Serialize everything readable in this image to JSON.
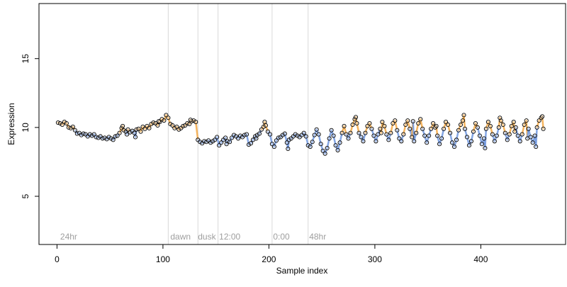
{
  "chart_data": {
    "type": "scatter",
    "title": "",
    "xlabel": "Sample index",
    "ylabel": "Expression",
    "xlim": [
      -17,
      480
    ],
    "ylim": [
      1.5,
      19.0
    ],
    "x_ticks": [
      0,
      100,
      200,
      300,
      400
    ],
    "y_ticks": [
      5,
      10,
      15
    ],
    "grid": false,
    "vlines": [
      105,
      133,
      152,
      203,
      237
    ],
    "annotations": [
      {
        "label": "24hr",
        "x": 3
      },
      {
        "label": "dawn",
        "x": 107
      },
      {
        "label": "dusk",
        "x": 133
      },
      {
        "label": "12:00",
        "x": 153
      },
      {
        "label": "0:00",
        "x": 204
      },
      {
        "label": "48hr",
        "x": 238
      }
    ],
    "colors": {
      "axis": "#000000",
      "point_stroke": "#000000",
      "point_fill": "#ffffff",
      "fit_orange": "#f4a742",
      "fit_blue": "#6f97e0",
      "vline": "#d9d9d9",
      "annotation": "#9e9e9e"
    },
    "series": [
      {
        "values": [
          [
            1,
            10.35
          ],
          [
            3,
            10.3
          ],
          [
            5,
            10.2
          ],
          [
            7,
            10.4
          ],
          [
            9,
            10.3
          ],
          [
            11,
            10.0
          ],
          [
            13,
            9.95
          ],
          [
            15,
            10.05
          ],
          [
            17,
            9.8
          ],
          [
            19,
            9.55
          ],
          [
            21,
            9.6
          ],
          [
            23,
            9.45
          ],
          [
            25,
            9.55
          ],
          [
            27,
            9.5
          ],
          [
            29,
            9.35
          ],
          [
            31,
            9.5
          ],
          [
            33,
            9.4
          ],
          [
            35,
            9.5
          ],
          [
            37,
            9.3
          ],
          [
            39,
            9.25
          ],
          [
            41,
            9.35
          ],
          [
            43,
            9.2
          ],
          [
            45,
            9.25
          ],
          [
            47,
            9.15
          ],
          [
            49,
            9.3
          ],
          [
            51,
            9.2
          ],
          [
            53,
            9.1
          ],
          [
            55,
            9.35
          ],
          [
            57,
            9.4
          ],
          [
            59,
            9.6
          ],
          [
            61,
            9.95
          ],
          [
            63,
            9.8
          ],
          [
            65,
            9.7
          ],
          [
            67,
            9.85
          ],
          [
            69,
            9.65
          ],
          [
            71,
            9.75
          ],
          [
            73,
            9.6
          ],
          [
            75,
            9.85
          ],
          [
            77,
            9.9
          ],
          [
            79,
            9.7
          ],
          [
            81,
            10.05
          ],
          [
            83,
            9.9
          ],
          [
            85,
            10.1
          ],
          [
            87,
            9.95
          ],
          [
            89,
            10.25
          ],
          [
            91,
            10.35
          ],
          [
            93,
            10.3
          ],
          [
            95,
            10.15
          ],
          [
            97,
            10.4
          ],
          [
            99,
            10.6
          ],
          [
            101,
            10.5
          ],
          [
            103,
            10.9
          ],
          [
            105,
            10.7
          ],
          [
            107,
            10.25
          ],
          [
            109,
            10.15
          ],
          [
            111,
            9.95
          ],
          [
            113,
            10.05
          ],
          [
            115,
            9.85
          ],
          [
            117,
            9.95
          ],
          [
            119,
            10.1
          ],
          [
            121,
            10.15
          ],
          [
            123,
            10.3
          ],
          [
            125,
            10.25
          ],
          [
            127,
            10.45
          ],
          [
            129,
            10.5
          ],
          [
            131,
            10.4
          ],
          [
            133,
            9.1
          ],
          [
            135,
            8.95
          ],
          [
            137,
            8.85
          ],
          [
            139,
            9.0
          ],
          [
            141,
            8.95
          ],
          [
            143,
            9.05
          ],
          [
            145,
            8.9
          ],
          [
            147,
            9.0
          ],
          [
            149,
            9.1
          ],
          [
            151,
            9.3
          ],
          [
            153,
            8.7
          ],
          [
            155,
            8.9
          ],
          [
            157,
            9.1
          ],
          [
            159,
            9.25
          ],
          [
            161,
            9.0
          ],
          [
            163,
            8.95
          ],
          [
            165,
            9.25
          ],
          [
            167,
            9.45
          ],
          [
            169,
            9.35
          ],
          [
            171,
            9.2
          ],
          [
            173,
            9.4
          ],
          [
            175,
            9.3
          ],
          [
            177,
            9.45
          ],
          [
            179,
            9.5
          ],
          [
            181,
            8.75
          ],
          [
            183,
            8.85
          ],
          [
            185,
            9.1
          ],
          [
            187,
            9.35
          ],
          [
            189,
            9.45
          ],
          [
            191,
            9.55
          ],
          [
            193,
            9.85
          ],
          [
            195,
            10.05
          ],
          [
            197,
            10.15
          ],
          [
            199,
            9.7
          ],
          [
            201,
            9.5
          ],
          [
            203,
            8.8
          ],
          [
            205,
            8.6
          ],
          [
            207,
            9.05
          ],
          [
            209,
            9.25
          ],
          [
            211,
            9.3
          ],
          [
            213,
            9.45
          ],
          [
            215,
            9.55
          ],
          [
            217,
            8.9
          ],
          [
            219,
            9.1
          ],
          [
            221,
            9.2
          ],
          [
            223,
            9.35
          ],
          [
            225,
            9.5
          ],
          [
            227,
            9.4
          ],
          [
            229,
            9.3
          ],
          [
            231,
            9.45
          ],
          [
            233,
            9.6
          ],
          [
            235,
            9.35
          ],
          [
            237,
            8.7
          ],
          [
            239,
            8.6
          ],
          [
            241,
            8.95
          ],
          [
            243,
            9.45
          ],
          [
            245,
            9.85
          ],
          [
            247,
            9.5
          ],
          [
            249,
            8.8
          ],
          [
            251,
            8.3
          ],
          [
            253,
            8.1
          ],
          [
            255,
            8.5
          ],
          [
            257,
            9.2
          ],
          [
            259,
            9.8
          ],
          [
            261,
            9.4
          ],
          [
            263,
            8.7
          ],
          [
            265,
            8.35
          ],
          [
            267,
            8.9
          ],
          [
            269,
            9.6
          ],
          [
            271,
            10.1
          ],
          [
            273,
            9.5
          ],
          [
            275,
            9.2
          ],
          [
            277,
            9.6
          ],
          [
            279,
            10.2
          ],
          [
            281,
            10.6
          ],
          [
            283,
            10.3
          ],
          [
            285,
            9.6
          ],
          [
            287,
            9.3
          ],
          [
            289,
            9.0
          ],
          [
            291,
            9.6
          ],
          [
            293,
            10.1
          ],
          [
            295,
            10.3
          ],
          [
            297,
            9.9
          ],
          [
            299,
            9.4
          ],
          [
            301,
            9.0
          ],
          [
            303,
            9.5
          ],
          [
            305,
            9.9
          ],
          [
            307,
            10.4
          ],
          [
            309,
            10.1
          ],
          [
            311,
            9.5
          ],
          [
            313,
            9.1
          ],
          [
            315,
            9.6
          ],
          [
            317,
            10.3
          ],
          [
            319,
            10.5
          ],
          [
            321,
            9.8
          ],
          [
            323,
            9.2
          ],
          [
            325,
            9.0
          ],
          [
            327,
            9.5
          ],
          [
            329,
            10.2
          ],
          [
            331,
            10.5
          ],
          [
            333,
            9.9
          ],
          [
            335,
            9.3
          ],
          [
            337,
            9.0
          ],
          [
            339,
            9.6
          ],
          [
            341,
            10.3
          ],
          [
            343,
            10.6
          ],
          [
            345,
            9.9
          ],
          [
            347,
            9.4
          ],
          [
            349,
            8.9
          ],
          [
            351,
            9.4
          ],
          [
            353,
            9.9
          ],
          [
            355,
            10.3
          ],
          [
            357,
            10.0
          ],
          [
            359,
            9.4
          ],
          [
            361,
            8.8
          ],
          [
            363,
            9.2
          ],
          [
            365,
            9.9
          ],
          [
            367,
            10.4
          ],
          [
            369,
            10.2
          ],
          [
            371,
            9.6
          ],
          [
            373,
            8.9
          ],
          [
            375,
            8.6
          ],
          [
            377,
            9.1
          ],
          [
            379,
            9.8
          ],
          [
            381,
            10.2
          ],
          [
            383,
            10.5
          ],
          [
            385,
            9.9
          ],
          [
            387,
            9.3
          ],
          [
            389,
            8.7
          ],
          [
            391,
            9.0
          ],
          [
            393,
            9.7
          ],
          [
            395,
            10.3
          ],
          [
            397,
            10.0
          ],
          [
            399,
            9.4
          ],
          [
            401,
            8.8
          ],
          [
            403,
            9.2
          ],
          [
            405,
            9.9
          ],
          [
            407,
            10.4
          ],
          [
            409,
            10.1
          ],
          [
            411,
            9.5
          ],
          [
            413,
            9.0
          ],
          [
            415,
            9.4
          ],
          [
            417,
            10.0
          ],
          [
            419,
            10.5
          ],
          [
            421,
            10.2
          ],
          [
            423,
            9.6
          ],
          [
            425,
            9.1
          ],
          [
            427,
            9.5
          ],
          [
            429,
            10.1
          ],
          [
            431,
            10.4
          ],
          [
            433,
            10.0
          ],
          [
            435,
            9.4
          ],
          [
            437,
            9.0
          ],
          [
            439,
            9.5
          ],
          [
            441,
            10.2
          ],
          [
            443,
            10.5
          ],
          [
            445,
            9.9
          ],
          [
            447,
            9.3
          ],
          [
            449,
            8.9
          ],
          [
            451,
            9.4
          ],
          [
            453,
            10.0
          ],
          [
            455,
            10.5
          ],
          [
            457,
            10.7
          ],
          [
            459,
            9.9
          ],
          [
            62,
            10.1
          ],
          [
            66,
            9.5
          ],
          [
            74,
            9.3
          ],
          [
            96,
            10.45
          ],
          [
            126,
            10.55
          ],
          [
            160,
            8.8
          ],
          [
            188,
            9.2
          ],
          [
            196,
            10.4
          ],
          [
            218,
            8.45
          ],
          [
            282,
            10.75
          ],
          [
            306,
            9.6
          ],
          [
            336,
            10.45
          ],
          [
            358,
            10.1
          ],
          [
            384,
            10.9
          ],
          [
            404,
            8.5
          ],
          [
            418,
            10.7
          ],
          [
            432,
            9.7
          ],
          [
            444,
            9.2
          ],
          [
            452,
            8.6
          ],
          [
            458,
            10.8
          ]
        ]
      }
    ]
  }
}
